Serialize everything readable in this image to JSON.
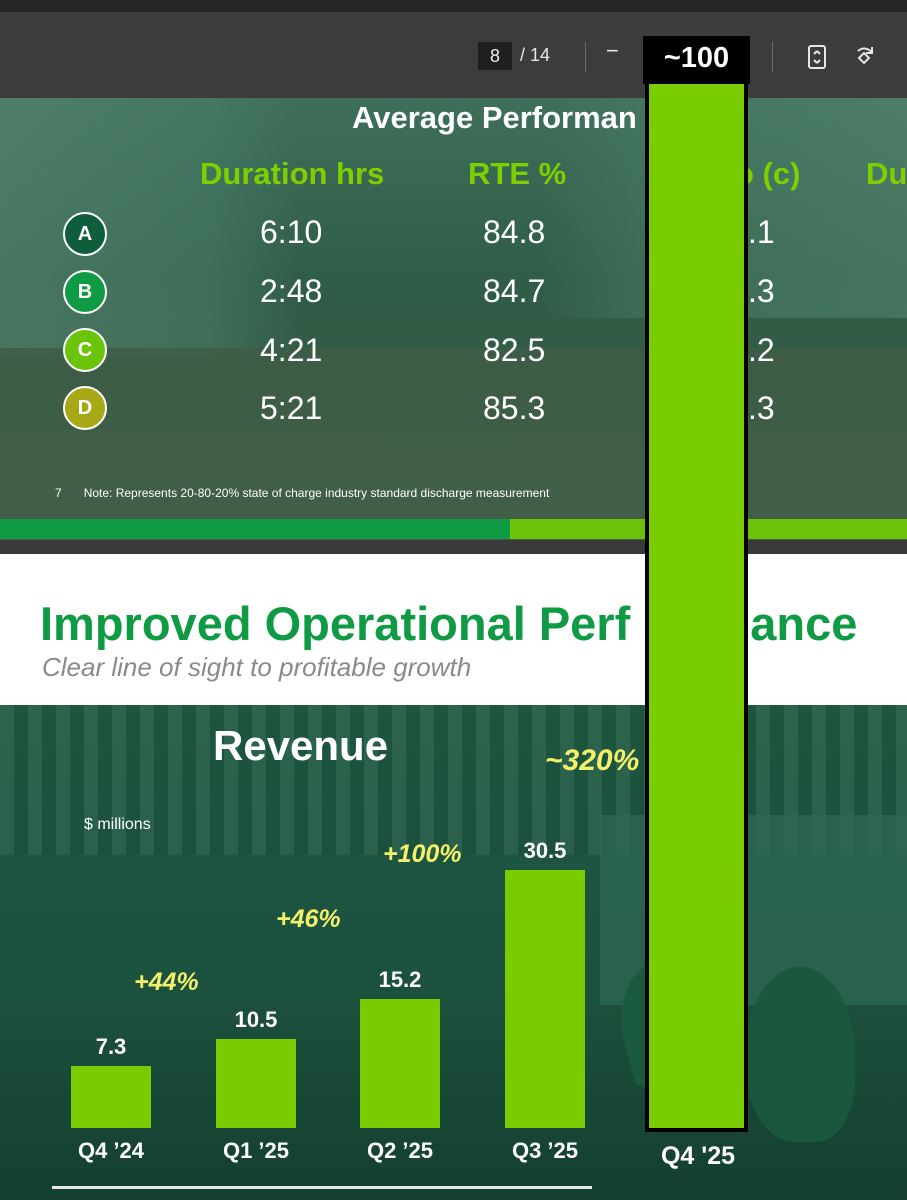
{
  "toolbar": {
    "page_current": "8",
    "page_total": "/ 14",
    "zoom_out_label": "−",
    "zoom_in_label": "+",
    "icons": [
      "fit-page-icon",
      "rotate-icon"
    ]
  },
  "slide7": {
    "title": "Average Performan",
    "columns": [
      "Duration hrs",
      "RTE %",
      "o (c)",
      "Du"
    ],
    "rows": [
      {
        "badge": "A",
        "badge_color": "#0e5e3c",
        "duration": "6:10",
        "rte": "84.8",
        "partial": ".1"
      },
      {
        "badge": "B",
        "badge_color": "#0f9a44",
        "duration": "2:48",
        "rte": "84.7",
        "partial": ".3"
      },
      {
        "badge": "C",
        "badge_color": "#6cc40a",
        "duration": "4:21",
        "rte": "82.5",
        "partial": ".2"
      },
      {
        "badge": "D",
        "badge_color": "#a7a815",
        "duration": "5:21",
        "rte": "85.3",
        "partial": ".3"
      }
    ],
    "note_number": "7",
    "note_text": "Note: Represents 20-80-20% state of charge industry standard discharge measurement"
  },
  "slide8": {
    "title": "Improved Operational Perf",
    "title_tail": "ance",
    "subtitle": "Clear line of sight to profitable growth",
    "chart_title": "Revenue",
    "units": "$ millions"
  },
  "chart_data": {
    "type": "bar",
    "title": "Revenue",
    "ylabel": "$ millions",
    "categories": [
      "Q4 ’24",
      "Q1 ’25",
      "Q2 ’25",
      "Q3 ’25",
      "Q4 '25"
    ],
    "values": [
      7.3,
      10.5,
      15.2,
      30.5,
      100
    ],
    "value_labels": [
      "7.3",
      "10.5",
      "15.2",
      "30.5",
      "~100"
    ],
    "growth_labels": [
      "+44%",
      "+46%",
      "+100%",
      "~320%"
    ],
    "bar_color": "#7acc00",
    "growth_color": "#f3f06a"
  }
}
